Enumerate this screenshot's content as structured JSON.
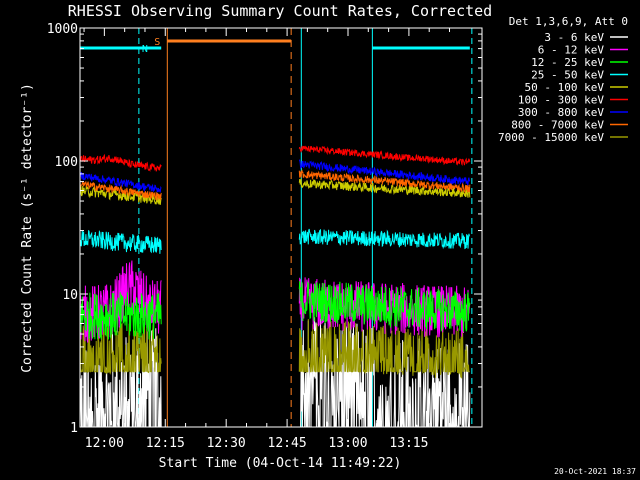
{
  "chart_data": {
    "type": "line",
    "title": "RHESSI Observing Summary Count Rates, Corrected",
    "xlabel": "Start Time (04-Oct-14 11:49:22)",
    "ylabel": "Corrected Count Rate (s⁻¹ detector⁻¹)",
    "yscale": "log",
    "ylim": [
      1,
      1000
    ],
    "xlim_minutes": [
      -6,
      93
    ],
    "x_unit": "minutes after 12:00",
    "x_ticks": [
      {
        "value": 0,
        "label": "12:00"
      },
      {
        "value": 15,
        "label": "12:15"
      },
      {
        "value": 30,
        "label": "12:30"
      },
      {
        "value": 45,
        "label": "12:45"
      },
      {
        "value": 60,
        "label": "13:00"
      },
      {
        "value": 75,
        "label": "13:15"
      }
    ],
    "y_ticks": [
      {
        "value": 1,
        "label": "1"
      },
      {
        "value": 10,
        "label": "10"
      },
      {
        "value": 100,
        "label": "100"
      },
      {
        "value": 1000,
        "label": "1000"
      }
    ],
    "legend_header": "Det 1,3,6,9, Att 0",
    "series": [
      {
        "name": "3 - 6 keV",
        "color": "#ffffff",
        "segments": [
          {
            "x": [
              -6,
              2
            ],
            "y_start": 1.6,
            "y_end": 1.5,
            "noise": 0.45,
            "floor": 1
          },
          {
            "x": [
              2,
              14
            ],
            "y_start": 1.9,
            "y_end": 2.0,
            "noise": 0.45,
            "floor": 1
          },
          {
            "x": [
              48,
              67
            ],
            "y_start": 3.0,
            "y_end": 2.3,
            "noise": 0.4,
            "floor": 1
          },
          {
            "x": [
              67,
              90
            ],
            "y_start": 1.7,
            "y_end": 1.6,
            "noise": 0.45,
            "floor": 1
          }
        ]
      },
      {
        "name": "6 - 12 keV",
        "color": "#ff00ff",
        "segments": [
          {
            "x": [
              -6,
              14
            ],
            "y_start": 7.0,
            "y_end": 7.8,
            "noise": 0.22,
            "peak": {
              "x": 6.5,
              "y": 11.5
            }
          },
          {
            "x": [
              48,
              90
            ],
            "y_start": 8.5,
            "y_end": 7.2,
            "noise": 0.2
          }
        ]
      },
      {
        "name": "12 - 25 keV",
        "color": "#00ff00",
        "segments": [
          {
            "x": [
              -6,
              14
            ],
            "y_start": 6.9,
            "y_end": 6.8,
            "noise": 0.18
          },
          {
            "x": [
              48,
              90
            ],
            "y_start": 9.0,
            "y_end": 7.3,
            "noise": 0.16
          }
        ]
      },
      {
        "name": "25 - 50 keV",
        "color": "#00ffff",
        "segments": [
          {
            "x": [
              -6,
              14
            ],
            "y_start": 26,
            "y_end": 23,
            "noise": 0.07
          },
          {
            "x": [
              48,
              90
            ],
            "y_start": 27,
            "y_end": 25,
            "noise": 0.06
          }
        ]
      },
      {
        "name": "50 - 100 keV",
        "color": "#cccc00",
        "segments": [
          {
            "x": [
              -6,
              14
            ],
            "y_start": 60,
            "y_end": 51,
            "noise": 0.04
          },
          {
            "x": [
              48,
              90
            ],
            "y_start": 68,
            "y_end": 57,
            "noise": 0.035
          }
        ]
      },
      {
        "name": "100 - 300 keV",
        "color": "#ff0000",
        "segments": [
          {
            "x": [
              -6,
              14
            ],
            "y_start": 104,
            "y_end": 88,
            "noise": 0.03,
            "peak": {
              "x": 1.5,
              "y": 106
            }
          },
          {
            "x": [
              48,
              90
            ],
            "y_start": 125,
            "y_end": 97,
            "noise": 0.025,
            "peak": {
              "x": 77,
              "y": 105
            }
          }
        ]
      },
      {
        "name": "300 - 800 keV",
        "color": "#0000ff",
        "segments": [
          {
            "x": [
              -6,
              14
            ],
            "y_start": 78,
            "y_end": 61,
            "noise": 0.03
          },
          {
            "x": [
              48,
              90
            ],
            "y_start": 95,
            "y_end": 70,
            "noise": 0.03
          }
        ]
      },
      {
        "name": "800 - 7000 keV",
        "color": "#ff6600",
        "segments": [
          {
            "x": [
              -6,
              14
            ],
            "y_start": 67,
            "y_end": 54,
            "noise": 0.03
          },
          {
            "x": [
              48,
              90
            ],
            "y_start": 80,
            "y_end": 62,
            "noise": 0.03
          }
        ]
      },
      {
        "name": "7000 - 15000 keV",
        "color": "#999900",
        "segments": [
          {
            "x": [
              -6,
              14
            ],
            "y_start": 4.0,
            "y_end": 3.7,
            "noise": 0.2,
            "floor": 2.6
          },
          {
            "x": [
              48,
              90
            ],
            "y_start": 4.2,
            "y_end": 3.6,
            "noise": 0.2,
            "floor": 2.6
          }
        ]
      }
    ],
    "markers": {
      "night": {
        "label": "N",
        "color": "#00ffff",
        "bars": [
          [
            -6,
            14
          ],
          [
            66,
            90
          ]
        ],
        "boundaries_dashed": [
          8.5,
          90.5
        ],
        "boundaries_solid": [
          -6,
          48.5,
          66
        ]
      },
      "saa": {
        "label": "S",
        "color": "#ff7f1f",
        "bar": [
          15.5,
          46
        ],
        "start": 15.5,
        "end_dashed": 46
      }
    }
  },
  "footer": {
    "date_stamp": "20-Oct-2021 18:37"
  }
}
